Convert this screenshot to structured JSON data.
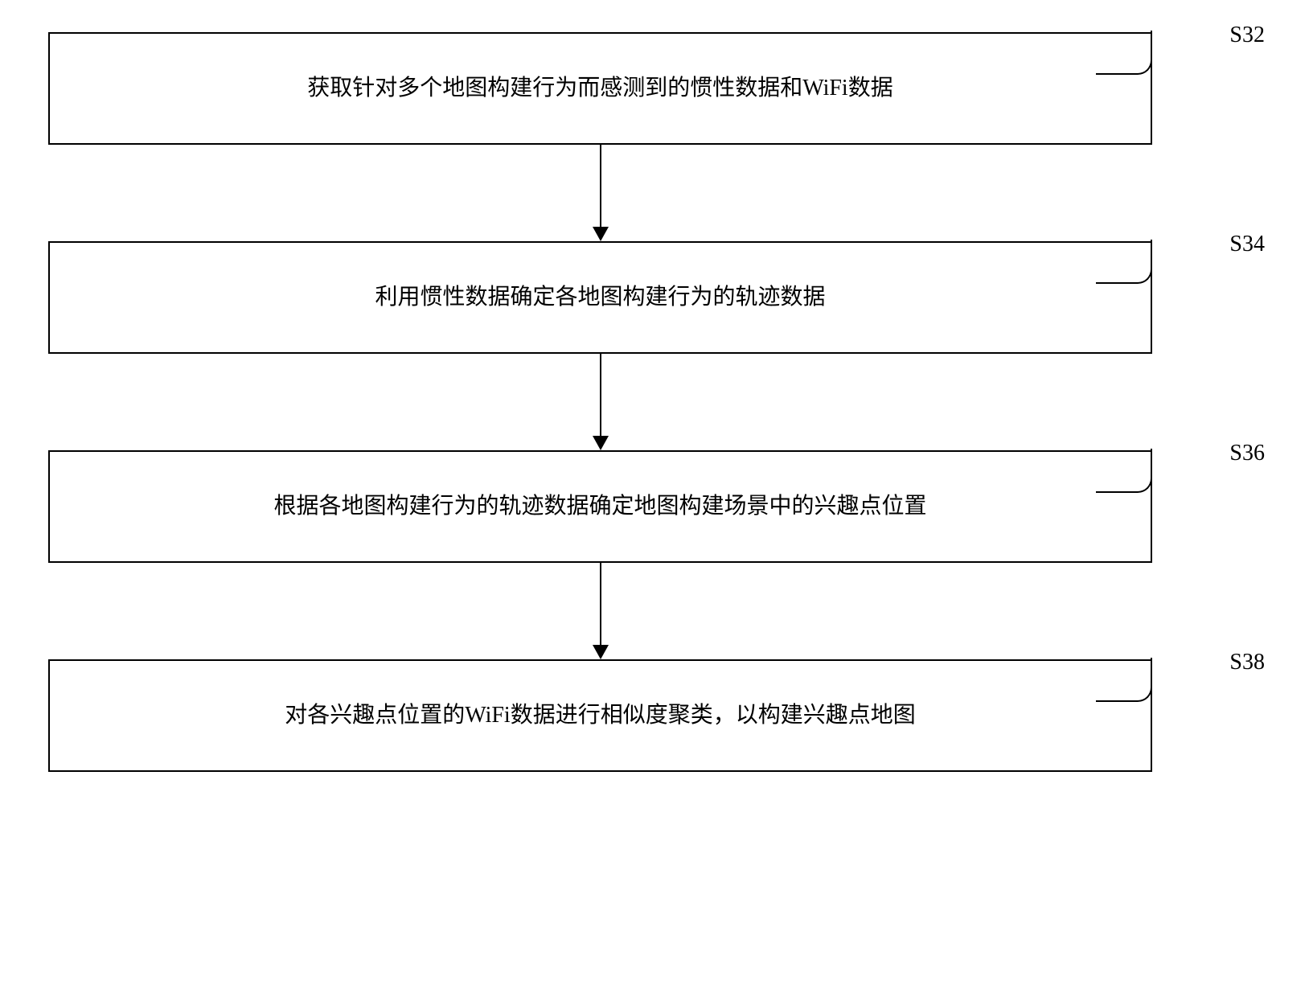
{
  "flowchart": {
    "type": "flowchart",
    "direction": "vertical",
    "box_border_color": "#000000",
    "box_border_width": 2,
    "box_background": "#ffffff",
    "box_font_size": 28,
    "label_font_size": 28,
    "arrow_color": "#000000",
    "arrow_line_width": 2,
    "arrow_head_width": 20,
    "arrow_head_height": 18,
    "arrow_gap_height": 120,
    "connector_radius": 18,
    "steps": [
      {
        "label": "S32",
        "text": "获取针对多个地图构建行为而感测到的惯性数据和WiFi数据"
      },
      {
        "label": "S34",
        "text": "利用惯性数据确定各地图构建行为的轨迹数据"
      },
      {
        "label": "S36",
        "text": "根据各地图构建行为的轨迹数据确定地图构建场景中的兴趣点位置"
      },
      {
        "label": "S38",
        "text": "对各兴趣点位置的WiFi数据进行相似度聚类，以构建兴趣点地图"
      }
    ]
  }
}
